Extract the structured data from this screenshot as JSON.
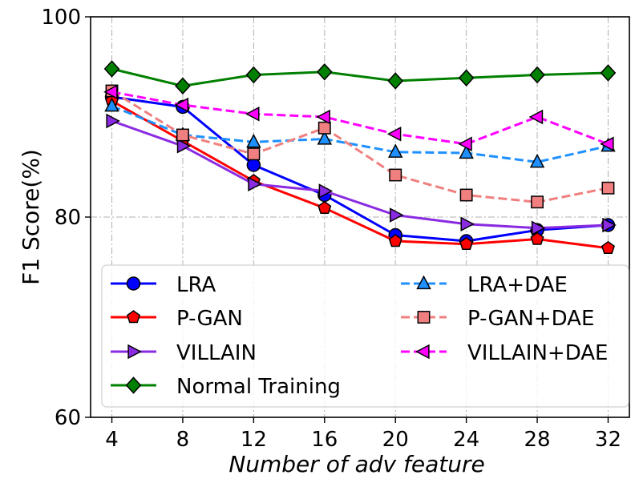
{
  "chart_data": {
    "type": "line",
    "title": "",
    "xlabel": "Number of adv feature",
    "ylabel": "F1 Score(%)",
    "x": [
      4,
      8,
      12,
      16,
      20,
      24,
      28,
      32
    ],
    "xticks": [
      "4",
      "8",
      "12",
      "16",
      "20",
      "24",
      "28",
      "32"
    ],
    "yticks": [
      "60",
      "80",
      "100"
    ],
    "ylim": [
      60,
      100
    ],
    "grid": true,
    "legend_position": "bottom",
    "series": [
      {
        "name": "LRA",
        "values": [
          92.0,
          91.0,
          85.2,
          82.2,
          78.2,
          77.6,
          78.7,
          79.2
        ],
        "color": "#0000ff",
        "dash": "solid",
        "marker": "circle"
      },
      {
        "name": "P-GAN",
        "values": [
          91.6,
          87.6,
          83.6,
          80.9,
          77.6,
          77.3,
          77.8,
          76.9
        ],
        "color": "#ff0000",
        "dash": "solid",
        "marker": "pentagon"
      },
      {
        "name": "VILLAIN",
        "values": [
          89.6,
          87.1,
          83.3,
          82.6,
          80.2,
          79.3,
          78.9,
          79.2
        ],
        "color": "#8a2be2",
        "dash": "solid",
        "marker": "triangle-right"
      },
      {
        "name": "Normal Training",
        "values": [
          94.8,
          93.1,
          94.2,
          94.5,
          93.6,
          93.9,
          94.2,
          94.4
        ],
        "color": "#008000",
        "dash": "solid",
        "marker": "diamond"
      },
      {
        "name": "LRA+DAE",
        "values": [
          91.1,
          88.2,
          87.5,
          87.8,
          86.5,
          86.4,
          85.5,
          87.1
        ],
        "color": "#1e90ff",
        "dash": "dashed",
        "marker": "triangle-up"
      },
      {
        "name": "P-GAN+DAE",
        "values": [
          92.6,
          88.2,
          86.3,
          88.9,
          84.2,
          82.2,
          81.5,
          82.9
        ],
        "color": "#f08080",
        "dash": "dashed",
        "marker": "square"
      },
      {
        "name": "VILLAIN+DAE",
        "values": [
          92.5,
          91.2,
          90.3,
          90.0,
          88.3,
          87.3,
          90.0,
          87.3
        ],
        "color": "#ff00ff",
        "dash": "dashed",
        "marker": "triangle-left"
      }
    ]
  }
}
